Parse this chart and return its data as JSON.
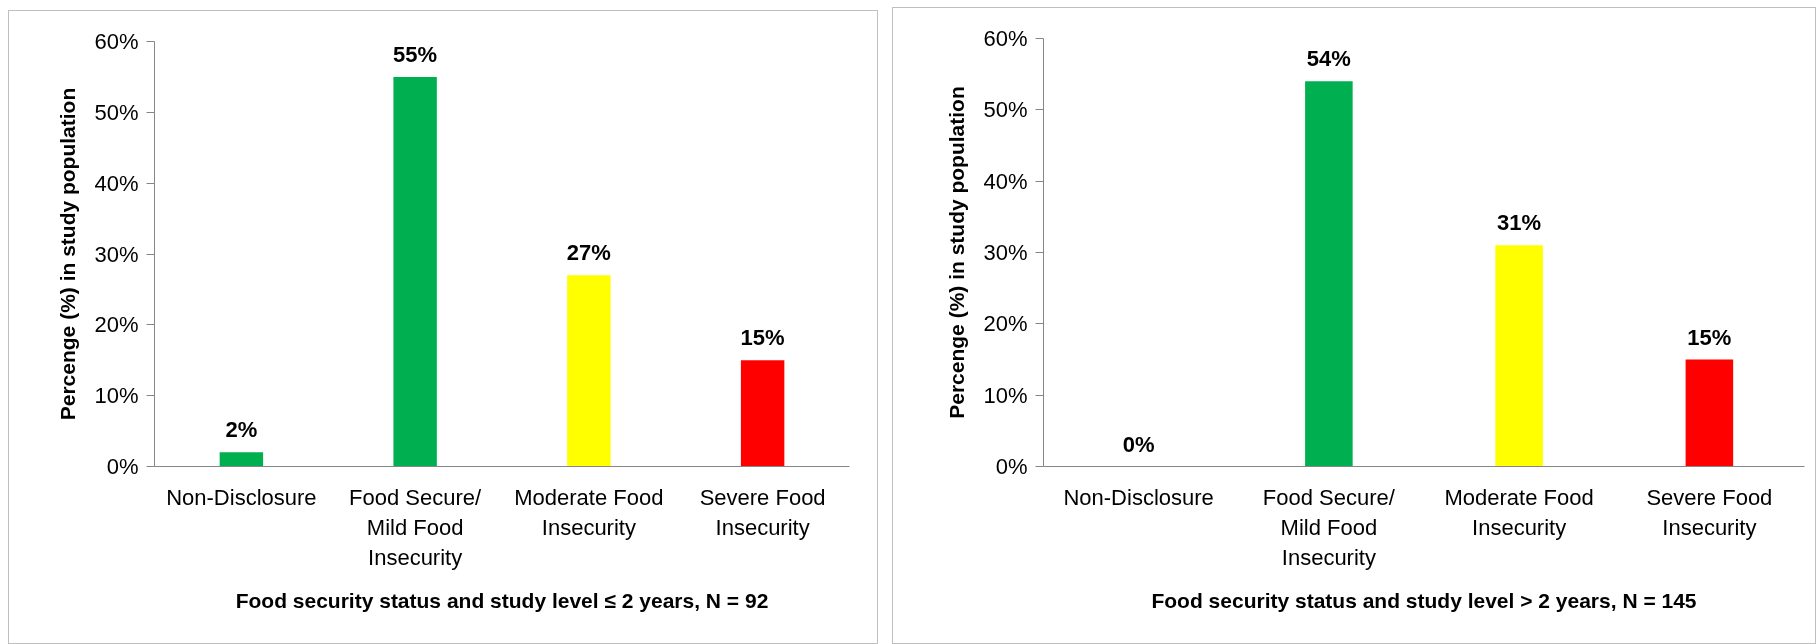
{
  "chart_data": [
    {
      "type": "bar",
      "categories": [
        "Non-Disclosure",
        "Food Secure/ Mild Food Insecurity",
        "Moderate Food Insecurity",
        "Severe Food Insecurity"
      ],
      "values": [
        2,
        55,
        27,
        15
      ],
      "colors": [
        "#00b050",
        "#00b050",
        "#ffff00",
        "#ff0000"
      ],
      "value_labels": [
        "2%",
        "55%",
        "27%",
        "15%"
      ],
      "xlabel": "Food security status and study level ≤ 2 years, N = 92",
      "ylabel": "Percenge (%) in study population",
      "ylim": [
        0,
        60
      ],
      "yticks": [
        {
          "value": 0,
          "label": "0%"
        },
        {
          "value": 10,
          "label": "10%"
        },
        {
          "value": 20,
          "label": "20%"
        },
        {
          "value": 30,
          "label": "30%"
        },
        {
          "value": 40,
          "label": "40%"
        },
        {
          "value": 50,
          "label": "50%"
        },
        {
          "value": 60,
          "label": "60%"
        }
      ],
      "grid": false
    },
    {
      "type": "bar",
      "categories": [
        "Non-Disclosure",
        "Food Secure/ Mild Food Insecurity",
        "Moderate Food Insecurity",
        "Severe Food Insecurity"
      ],
      "values": [
        0,
        54,
        31,
        15
      ],
      "colors": [
        "#00b050",
        "#00b050",
        "#ffff00",
        "#ff0000"
      ],
      "value_labels": [
        "0%",
        "54%",
        "31%",
        "15%"
      ],
      "xlabel": "Food security status and study level > 2 years, N = 145",
      "ylabel": "Percenge (%) in study population",
      "ylim": [
        0,
        60
      ],
      "yticks": [
        {
          "value": 0,
          "label": "0%"
        },
        {
          "value": 10,
          "label": "10%"
        },
        {
          "value": 20,
          "label": "20%"
        },
        {
          "value": 30,
          "label": "30%"
        },
        {
          "value": 40,
          "label": "40%"
        },
        {
          "value": 50,
          "label": "50%"
        },
        {
          "value": 60,
          "label": "60%"
        }
      ],
      "grid": false
    }
  ]
}
